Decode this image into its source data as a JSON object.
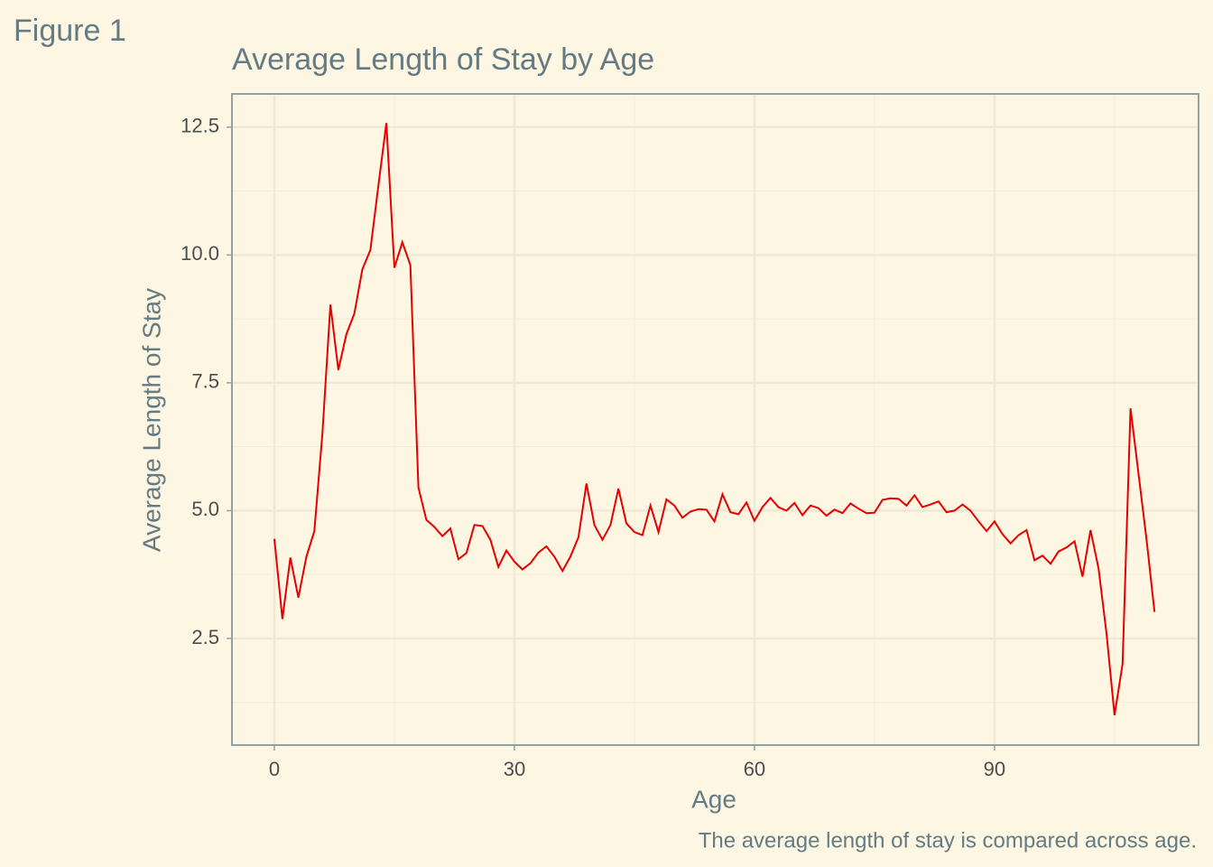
{
  "figure_label": "Figure 1",
  "chart_data": {
    "type": "line",
    "title": "Average Length of Stay by Age",
    "x_label": "Age",
    "y_label": "Average Length of Stay",
    "caption": "The average length of stay is compared across age.",
    "x": [
      0,
      1,
      2,
      3,
      4,
      5,
      6,
      7,
      8,
      9,
      10,
      11,
      12,
      13,
      14,
      15,
      16,
      17,
      18,
      19,
      20,
      21,
      22,
      23,
      24,
      25,
      26,
      27,
      28,
      29,
      30,
      31,
      32,
      33,
      34,
      35,
      36,
      37,
      38,
      39,
      40,
      41,
      42,
      43,
      44,
      45,
      46,
      47,
      48,
      49,
      50,
      51,
      52,
      53,
      54,
      55,
      56,
      57,
      58,
      59,
      60,
      61,
      62,
      63,
      64,
      65,
      66,
      67,
      68,
      69,
      70,
      71,
      72,
      73,
      74,
      75,
      76,
      77,
      78,
      79,
      80,
      81,
      82,
      83,
      84,
      85,
      86,
      87,
      88,
      89,
      90,
      91,
      92,
      93,
      94,
      95,
      96,
      97,
      98,
      99,
      100,
      101,
      102,
      103,
      104,
      105,
      106,
      107,
      108,
      109,
      110
    ],
    "series": [
      {
        "name": "Average Length of Stay",
        "color": "#e60000",
        "values": [
          4.45,
          2.88,
          4.08,
          3.3,
          4.1,
          4.6,
          6.5,
          9.03,
          7.75,
          8.45,
          8.85,
          9.72,
          10.1,
          11.35,
          12.58,
          9.75,
          10.25,
          9.8,
          5.45,
          4.82,
          4.68,
          4.5,
          4.65,
          4.05,
          4.17,
          4.72,
          4.7,
          4.43,
          3.9,
          4.22,
          4.0,
          3.85,
          3.97,
          4.18,
          4.3,
          4.1,
          3.82,
          4.1,
          4.48,
          5.53,
          4.72,
          4.43,
          4.72,
          5.43,
          4.75,
          4.58,
          4.52,
          5.1,
          4.58,
          5.22,
          5.1,
          4.86,
          4.98,
          5.03,
          5.02,
          4.79,
          5.32,
          4.97,
          4.93,
          5.16,
          4.8,
          5.07,
          5.25,
          5.07,
          5.0,
          5.15,
          4.91,
          5.1,
          5.05,
          4.9,
          5.02,
          4.95,
          5.14,
          5.04,
          4.95,
          4.96,
          5.21,
          5.24,
          5.23,
          5.1,
          5.3,
          5.07,
          5.12,
          5.18,
          4.97,
          5.0,
          5.12,
          5.0,
          4.79,
          4.6,
          4.79,
          4.54,
          4.36,
          4.52,
          4.62,
          4.03,
          4.12,
          3.96,
          4.2,
          4.28,
          4.4,
          3.71,
          4.62,
          3.87,
          2.6,
          1.0,
          2.0,
          7.0,
          5.72,
          4.43,
          3.02
        ]
      }
    ],
    "xlim": [
      -5.3,
      115.5
    ],
    "ylim": [
      0.415,
      13.15
    ],
    "xticks": [
      0,
      30,
      60,
      90
    ],
    "yticks": [
      {
        "value": 2.5,
        "label": "2.5"
      },
      {
        "value": 5,
        "label": "5.0"
      },
      {
        "value": 7.5,
        "label": "7.5"
      },
      {
        "value": 10,
        "label": "10.0"
      },
      {
        "value": 12.5,
        "label": "12.5"
      }
    ],
    "grid": true
  }
}
